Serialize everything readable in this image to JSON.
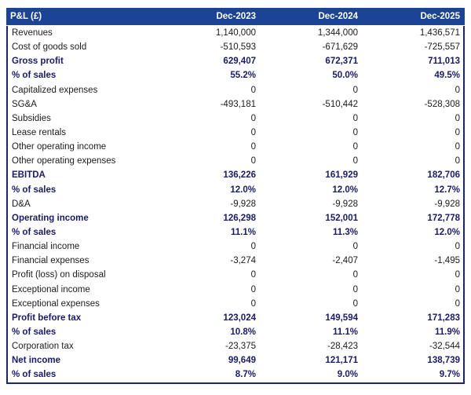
{
  "colors": {
    "header_bg": "#1B4496",
    "header_text": "#FFFFFF",
    "emphasis_text": "#1A1A6E",
    "border": "#1A2470",
    "body_text": "#1C1C1C"
  },
  "chart_data": {
    "type": "table",
    "title": "P&L (£)",
    "columns": [
      "Dec-2023",
      "Dec-2024",
      "Dec-2025"
    ],
    "rows": [
      {
        "label": "Revenues",
        "values": [
          "1,140,000",
          "1,344,000",
          "1,436,571"
        ],
        "emphasis": false
      },
      {
        "label": "Cost of goods sold",
        "values": [
          "-510,593",
          "-671,629",
          "-725,557"
        ],
        "emphasis": false
      },
      {
        "label": "Gross profit",
        "values": [
          "629,407",
          "672,371",
          "711,013"
        ],
        "emphasis": true
      },
      {
        "label": "% of sales",
        "values": [
          "55.2%",
          "50.0%",
          "49.5%"
        ],
        "emphasis": true
      },
      {
        "label": "Capitalized expenses",
        "values": [
          "0",
          "0",
          "0"
        ],
        "emphasis": false
      },
      {
        "label": "SG&A",
        "values": [
          "-493,181",
          "-510,442",
          "-528,308"
        ],
        "emphasis": false
      },
      {
        "label": "Subsidies",
        "values": [
          "0",
          "0",
          "0"
        ],
        "emphasis": false
      },
      {
        "label": "Lease rentals",
        "values": [
          "0",
          "0",
          "0"
        ],
        "emphasis": false
      },
      {
        "label": "Other operating income",
        "values": [
          "0",
          "0",
          "0"
        ],
        "emphasis": false
      },
      {
        "label": "Other operating expenses",
        "values": [
          "0",
          "0",
          "0"
        ],
        "emphasis": false
      },
      {
        "label": "EBITDA",
        "values": [
          "136,226",
          "161,929",
          "182,706"
        ],
        "emphasis": true
      },
      {
        "label": "% of sales",
        "values": [
          "12.0%",
          "12.0%",
          "12.7%"
        ],
        "emphasis": true
      },
      {
        "label": "D&A",
        "values": [
          "-9,928",
          "-9,928",
          "-9,928"
        ],
        "emphasis": false
      },
      {
        "label": "Operating income",
        "values": [
          "126,298",
          "152,001",
          "172,778"
        ],
        "emphasis": true
      },
      {
        "label": "% of sales",
        "values": [
          "11.1%",
          "11.3%",
          "12.0%"
        ],
        "emphasis": true
      },
      {
        "label": "Financial income",
        "values": [
          "0",
          "0",
          "0"
        ],
        "emphasis": false
      },
      {
        "label": "Financial expenses",
        "values": [
          "-3,274",
          "-2,407",
          "-1,495"
        ],
        "emphasis": false
      },
      {
        "label": "Profit (loss) on disposal",
        "values": [
          "0",
          "0",
          "0"
        ],
        "emphasis": false
      },
      {
        "label": "Exceptional income",
        "values": [
          "0",
          "0",
          "0"
        ],
        "emphasis": false
      },
      {
        "label": "Exceptional expenses",
        "values": [
          "0",
          "0",
          "0"
        ],
        "emphasis": false
      },
      {
        "label": "Profit before tax",
        "values": [
          "123,024",
          "149,594",
          "171,283"
        ],
        "emphasis": true
      },
      {
        "label": "% of sales",
        "values": [
          "10.8%",
          "11.1%",
          "11.9%"
        ],
        "emphasis": true
      },
      {
        "label": "Corporation tax",
        "values": [
          "-23,375",
          "-28,423",
          "-32,544"
        ],
        "emphasis": false
      },
      {
        "label": "Net income",
        "values": [
          "99,649",
          "121,171",
          "138,739"
        ],
        "emphasis": true
      },
      {
        "label": "% of sales",
        "values": [
          "8.7%",
          "9.0%",
          "9.7%"
        ],
        "emphasis": true
      }
    ]
  }
}
